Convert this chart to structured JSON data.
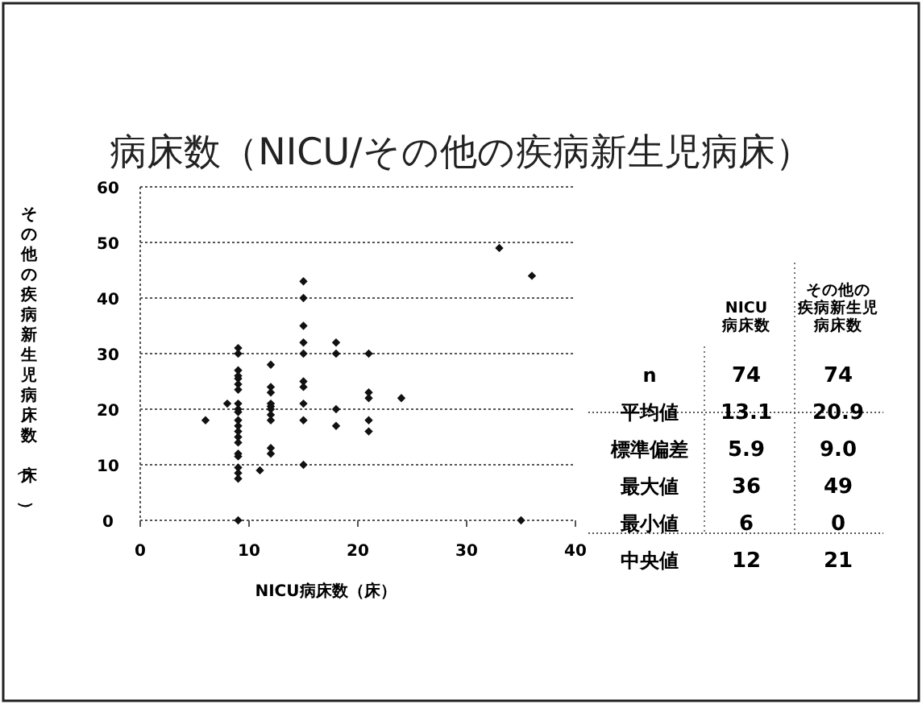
{
  "chart_data": [
    {
      "type": "scatter",
      "title": "病床数（NICU/その他の疾病新生児病床）",
      "xlabel": "NICU病床数（床）",
      "ylabel": "その他の疾病新生児病床数（床）",
      "xlim": [
        0,
        40
      ],
      "xticks": [
        0,
        10,
        20,
        30,
        40
      ],
      "ylim": [
        0,
        60
      ],
      "yticks": [
        0,
        10,
        20,
        30,
        40,
        50,
        60
      ],
      "grid": "y",
      "marker": "diamond",
      "series": [
        {
          "color": "#111111",
          "x": [
            9,
            9,
            9,
            9,
            9,
            9,
            9,
            9,
            9,
            9,
            9,
            9,
            9,
            9,
            9,
            9,
            9,
            9,
            9,
            9,
            9,
            6,
            8,
            11,
            12,
            12,
            12,
            12,
            12,
            12,
            12,
            12,
            12,
            12,
            15,
            15,
            15,
            15,
            15,
            15,
            15,
            15,
            15,
            15,
            18,
            18,
            18,
            18,
            21,
            21,
            21,
            21,
            21,
            24,
            33,
            36,
            35
          ],
          "values": [
            31,
            30,
            27,
            26,
            25.5,
            24.5,
            23.5,
            21,
            20,
            19.5,
            18,
            17,
            16,
            15,
            14,
            12,
            11.5,
            9.5,
            8.5,
            7.5,
            0,
            18,
            21,
            9,
            28,
            24,
            23,
            21,
            20.5,
            20,
            19,
            18,
            13,
            12,
            43,
            40,
            35,
            32,
            30,
            25,
            24,
            21,
            18,
            10,
            32,
            30,
            20,
            17,
            30,
            23,
            22,
            18,
            16,
            22,
            49,
            44,
            0
          ]
        }
      ]
    },
    {
      "type": "other",
      "y_categories": [
        null,
        null,
        null,
        "n",
        "平均値",
        "標準偏差",
        "最大値",
        "最小値",
        "中央値"
      ],
      "cell_labels": [
        [
          null,
          "その他の"
        ],
        [
          "NICU",
          "疾病新生児"
        ],
        [
          "病床数",
          "病床数"
        ],
        [
          "74",
          "74"
        ],
        [
          "13.1",
          "20.9"
        ],
        [
          "5.9",
          "9.0"
        ],
        [
          "36",
          "49"
        ],
        [
          "6",
          "0"
        ],
        [
          "12",
          "21"
        ]
      ]
    }
  ]
}
